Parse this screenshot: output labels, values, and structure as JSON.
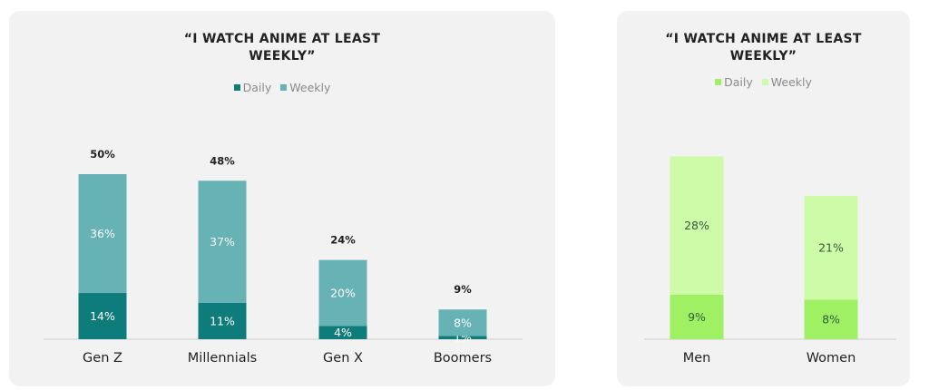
{
  "chart_data": [
    {
      "type": "bar",
      "stacked": true,
      "title": "“I WATCH ANIME AT LEAST WEEKLY”",
      "categories": [
        "Gen Z",
        "Millennials",
        "Gen X",
        "Boomers"
      ],
      "series": [
        {
          "name": "Daily",
          "values": [
            14,
            11,
            4,
            1
          ],
          "labels": [
            "14%",
            "11%",
            "4%",
            "1%"
          ],
          "color": "#0e7c7b"
        },
        {
          "name": "Weekly",
          "values": [
            36,
            37,
            20,
            8
          ],
          "labels": [
            "36%",
            "37%",
            "20%",
            "8%"
          ],
          "color": "#66b2b5"
        }
      ],
      "totals": [
        "50%",
        "48%",
        "24%",
        "9%"
      ],
      "legend_position": "top-center",
      "grid": false,
      "ylim": [
        0,
        50
      ]
    },
    {
      "type": "bar",
      "stacked": true,
      "title": "“I WATCH ANIME AT LEAST WEEKLY”",
      "categories": [
        "Men",
        "Women"
      ],
      "series": [
        {
          "name": "Daily",
          "values": [
            9,
            8
          ],
          "labels": [
            "9%",
            "8%"
          ],
          "color": "#a0f064"
        },
        {
          "name": "Weekly",
          "values": [
            28,
            21
          ],
          "labels": [
            "28%",
            "21%"
          ],
          "color": "#cdfba8"
        }
      ],
      "legend_position": "top-center",
      "grid": false,
      "ylim": [
        0,
        37
      ]
    }
  ],
  "colors": {
    "panel_bg": "#f2f2f2",
    "axis": "#cfcfcf",
    "dark_label": "#2e5e3a",
    "light_label": "#ffffff"
  }
}
